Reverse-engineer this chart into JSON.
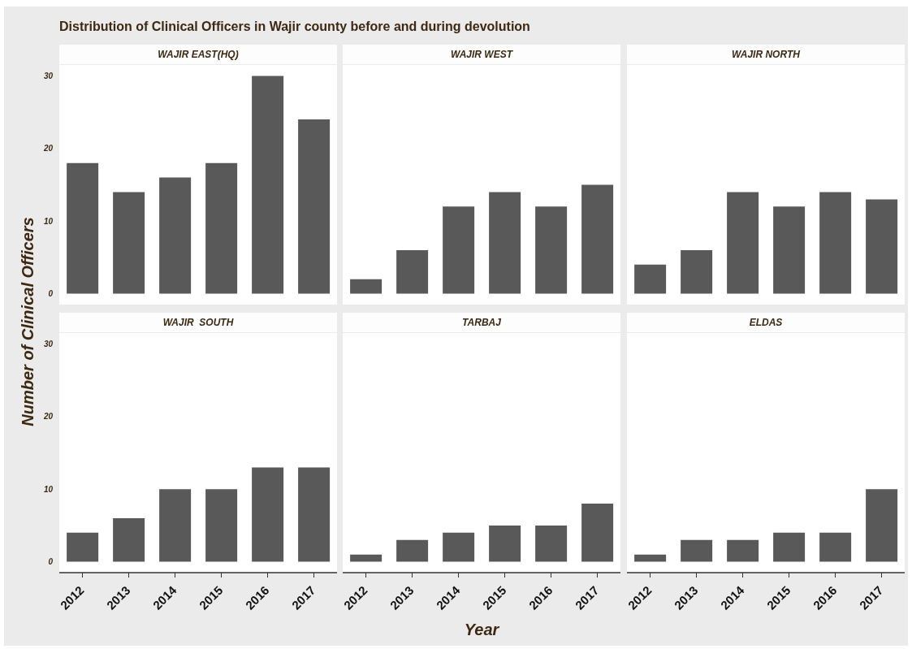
{
  "chart_data": [
    {
      "type": "bar",
      "title": "WAJIR EAST(HQ)",
      "annotations": [
        "Distribution of Clinical Officers in Wajir county before and during devolution"
      ],
      "ylabel": "Number of Clinical Officers",
      "categories": [
        "2012",
        "2013",
        "2014",
        "2015",
        "2016",
        "2017"
      ],
      "values": [
        18,
        14,
        16,
        18,
        30,
        24
      ],
      "color": "#595959",
      "ylim": [
        -1.5,
        31.5
      ],
      "yticks": [
        0,
        10,
        20,
        30
      ],
      "grid": false,
      "tick_labels": "y"
    },
    {
      "type": "bar",
      "title": "WAJIR WEST",
      "categories": [
        "2012",
        "2013",
        "2014",
        "2015",
        "2016",
        "2017"
      ],
      "values": [
        2,
        6,
        12,
        14,
        12,
        15
      ],
      "color": "#595959",
      "ylim": [
        -1.5,
        31.5
      ],
      "yticks": [
        0,
        10,
        20,
        30
      ],
      "grid": false,
      "tick_labels": false
    },
    {
      "type": "bar",
      "title": "WAJIR NORTH",
      "categories": [
        "2012",
        "2013",
        "2014",
        "2015",
        "2016",
        "2017"
      ],
      "values": [
        4,
        6,
        14,
        12,
        14,
        13
      ],
      "color": "#595959",
      "ylim": [
        -1.5,
        31.5
      ],
      "yticks": [
        0,
        10,
        20,
        30
      ],
      "grid": false,
      "tick_labels": false
    },
    {
      "type": "bar",
      "title": "WAJIR  SOUTH",
      "categories": [
        "2012",
        "2013",
        "2014",
        "2015",
        "2016",
        "2017"
      ],
      "values": [
        4,
        6,
        10,
        10,
        13,
        13
      ],
      "color": "#595959",
      "ylim": [
        -1.5,
        31.5
      ],
      "yticks": [
        0,
        10,
        20,
        30
      ],
      "grid": false
    },
    {
      "type": "bar",
      "title": "TARBAJ",
      "xlabel": "Year",
      "categories": [
        "2012",
        "2013",
        "2014",
        "2015",
        "2016",
        "2017"
      ],
      "values": [
        1,
        3,
        4,
        5,
        5,
        8
      ],
      "color": "#595959",
      "ylim": [
        -1.5,
        31.5
      ],
      "yticks": [
        0,
        10,
        20,
        30
      ],
      "grid": false,
      "tick_labels": "x"
    },
    {
      "type": "bar",
      "title": "ELDAS",
      "categories": [
        "2012",
        "2013",
        "2014",
        "2015",
        "2016",
        "2017"
      ],
      "values": [
        1,
        3,
        3,
        4,
        4,
        10
      ],
      "color": "#595959",
      "ylim": [
        -1.5,
        31.5
      ],
      "yticks": [
        0,
        10,
        20,
        30
      ],
      "grid": false,
      "tick_labels": "x"
    }
  ]
}
